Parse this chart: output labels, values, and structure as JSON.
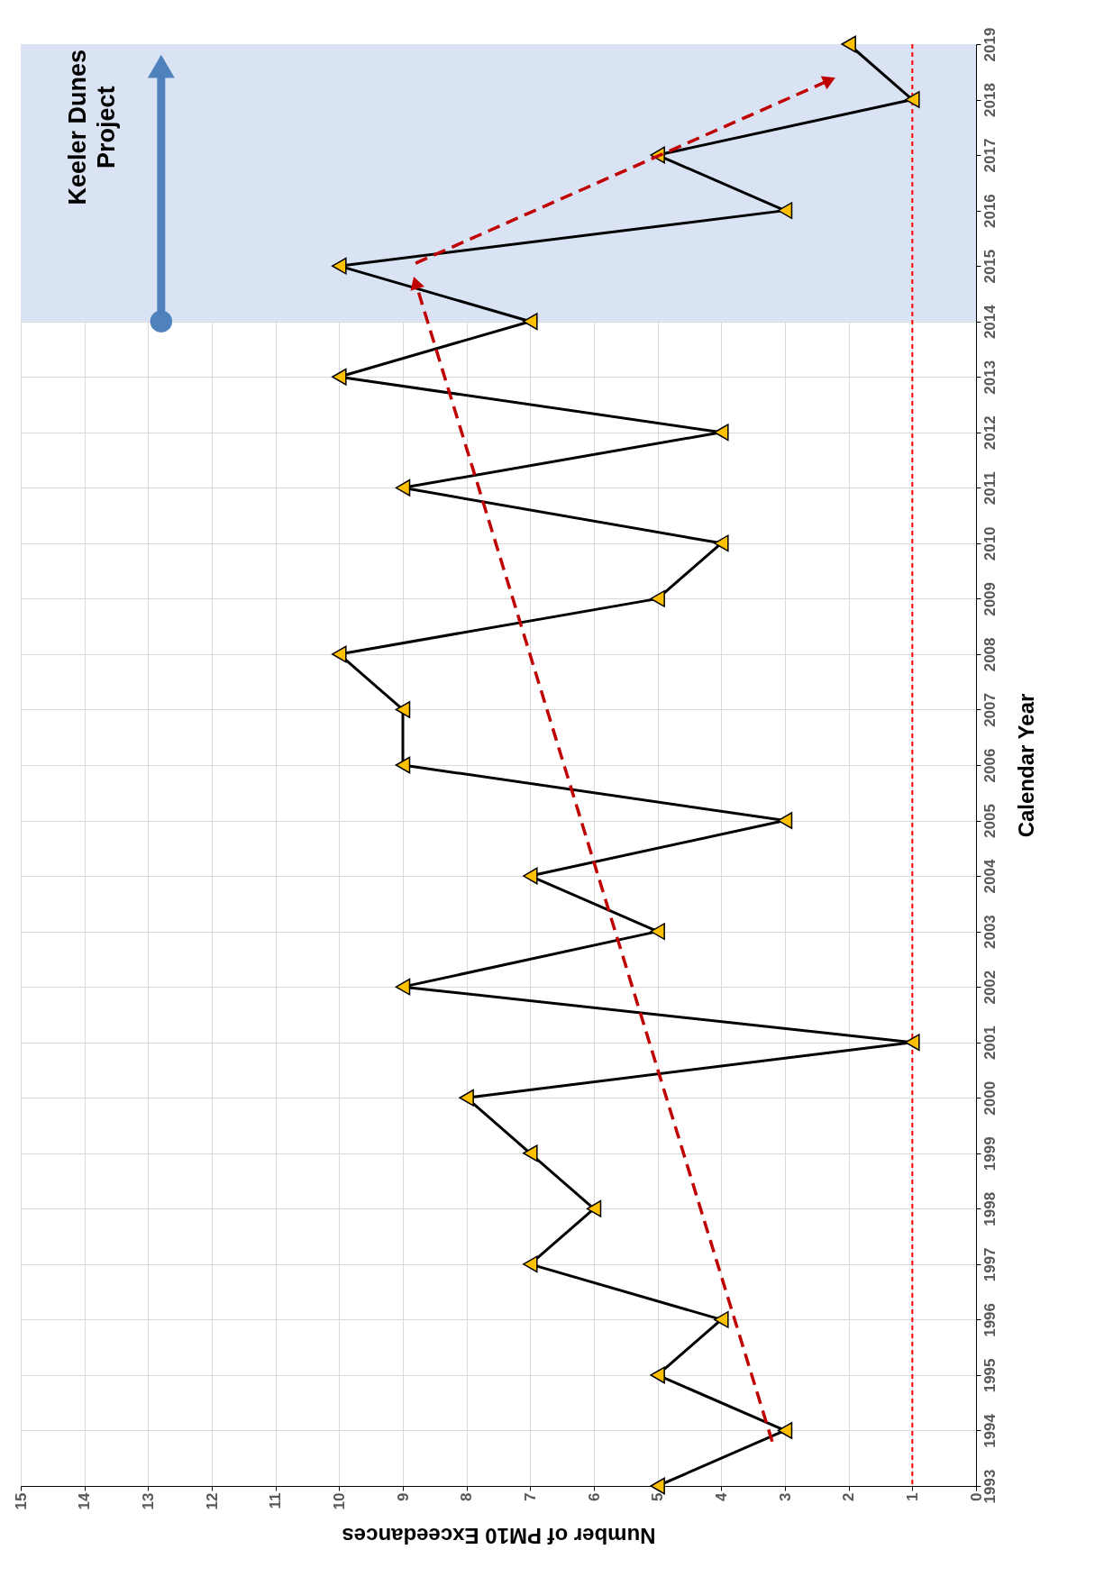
{
  "chart_data": {
    "type": "line",
    "orientation": "horizontal",
    "xlabel": "Number of PM10 Exceedances",
    "ylabel": "Calendar Year",
    "x": [
      1993,
      1994,
      1995,
      1996,
      1997,
      1998,
      1999,
      2000,
      2001,
      2002,
      2003,
      2004,
      2005,
      2006,
      2007,
      2008,
      2009,
      2010,
      2011,
      2012,
      2013,
      2014,
      2015,
      2016,
      2017,
      2018,
      2019
    ],
    "series": [
      {
        "type": "line",
        "color": "#000000",
        "line_style": "solid",
        "marker": "triangle",
        "colors": [
          "#ffc000",
          "#ffc000",
          "#ffc000",
          "#ffc000",
          "#ffc000",
          "#ffc000",
          "#ffc000",
          "#ffc000",
          "#ffc000",
          "#ffc000",
          "#ffc000",
          "#ffc000",
          "#ffc000",
          "#ffc000",
          "#ffc000",
          "#ffc000",
          "#ffc000",
          "#ffc000",
          "#ffc000",
          "#ffc000",
          "#ffc000",
          "#ffc000",
          "#ffc000",
          "#ffc000",
          "#ffc000",
          "#ffc000",
          "#ffc000"
        ],
        "values": [
          5,
          3,
          5,
          4,
          7,
          6,
          7,
          8,
          1,
          9,
          5,
          7,
          3,
          9,
          9,
          10,
          5,
          4,
          9,
          4,
          10,
          7,
          10,
          3,
          5,
          1,
          2
        ]
      },
      {
        "type": "line",
        "color": "#c00000",
        "line_style": "dashed",
        "x": [
          1993.8,
          2014.7
        ],
        "values": [
          3.2,
          8.8
        ]
      },
      {
        "type": "line",
        "color": "#c00000",
        "line_style": "dashed",
        "x": [
          2015.05,
          2018.35
        ],
        "values": [
          8.8,
          2.3
        ]
      }
    ],
    "xlim": [
      15,
      0
    ],
    "xticks": [
      0,
      1,
      2,
      3,
      4,
      5,
      6,
      7,
      8,
      9,
      10,
      11,
      12,
      13,
      14,
      15
    ],
    "ylim": [
      1993,
      2019
    ],
    "yticks": [
      1993,
      1994,
      1995,
      1996,
      1997,
      1998,
      1999,
      2000,
      2001,
      2002,
      2003,
      2004,
      2005,
      2006,
      2007,
      2008,
      2009,
      2010,
      2011,
      2012,
      2013,
      2014,
      2015,
      2016,
      2017,
      2018,
      2019
    ],
    "grid": true,
    "ref_lines": [
      {
        "axis": "x",
        "value": 1,
        "color": "#ff0000",
        "line_style": "dotted"
      }
    ],
    "bands": [
      {
        "axis": "y",
        "from": 2014,
        "to": 2019,
        "label": "Keeler Dunes Project",
        "color": "#dae3f3"
      }
    ]
  }
}
